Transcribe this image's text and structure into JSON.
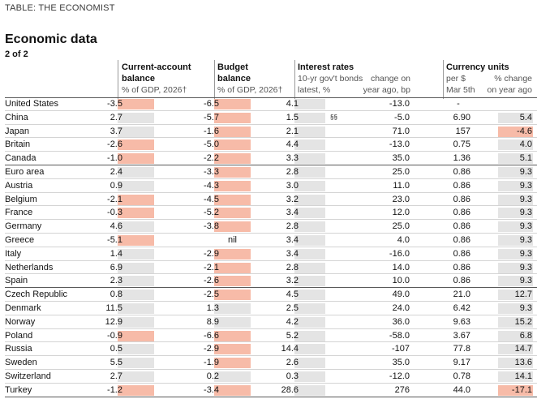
{
  "source": "TABLE: THE ECONOMIST",
  "title": "Economic data",
  "subtitle": "2 of 2",
  "headers": {
    "ca_title": "Current-account",
    "ca_title2": "balance",
    "ca_unit": "% of GDP, 2026†",
    "bb_title": "Budget",
    "bb_title2": "balance",
    "bb_unit": "% of GDP, 2026†",
    "ir_title": "Interest rates",
    "ir_sub1": "10-yr gov't bonds",
    "ir_sub2": "latest, %",
    "ir_chg1": "change on",
    "ir_chg2": "year ago, bp",
    "cu_title": "Currency units",
    "cu_per1": "per $",
    "cu_per2": "Mar 5th",
    "cu_chg1": "% change",
    "cu_chg2": "on year ago"
  },
  "footnote_china": "§§",
  "rows": [
    {
      "country": "United States",
      "ca": "-3.5",
      "bb": "-6.5",
      "ir": "4.1",
      "irc": "-13.0",
      "fx": "-",
      "fxc": "",
      "group_end": false
    },
    {
      "country": "China",
      "ca": "2.7",
      "bb": "-5.7",
      "ir": "1.5",
      "irc": "-5.0",
      "fx": "6.90",
      "fxc": "5.4",
      "group_end": false
    },
    {
      "country": "Japan",
      "ca": "3.7",
      "bb": "-1.6",
      "ir": "2.1",
      "irc": "71.0",
      "fx": "157",
      "fxc": "-4.6",
      "group_end": false
    },
    {
      "country": "Britain",
      "ca": "-2.6",
      "bb": "-5.0",
      "ir": "4.4",
      "irc": "-13.0",
      "fx": "0.75",
      "fxc": "4.0",
      "group_end": false
    },
    {
      "country": "Canada",
      "ca": "-1.0",
      "bb": "-2.2",
      "ir": "3.3",
      "irc": "35.0",
      "fx": "1.36",
      "fxc": "5.1",
      "group_end": true
    },
    {
      "country": "Euro area",
      "ca": "2.4",
      "bb": "-3.3",
      "ir": "2.8",
      "irc": "25.0",
      "fx": "0.86",
      "fxc": "9.3",
      "group_end": false
    },
    {
      "country": "Austria",
      "ca": "0.9",
      "bb": "-4.3",
      "ir": "3.0",
      "irc": "11.0",
      "fx": "0.86",
      "fxc": "9.3",
      "group_end": false
    },
    {
      "country": "Belgium",
      "ca": "-2.1",
      "bb": "-4.5",
      "ir": "3.2",
      "irc": "23.0",
      "fx": "0.86",
      "fxc": "9.3",
      "group_end": false
    },
    {
      "country": "France",
      "ca": "-0.3",
      "bb": "-5.2",
      "ir": "3.4",
      "irc": "12.0",
      "fx": "0.86",
      "fxc": "9.3",
      "group_end": false
    },
    {
      "country": "Germany",
      "ca": "4.6",
      "bb": "-3.8",
      "ir": "2.8",
      "irc": "25.0",
      "fx": "0.86",
      "fxc": "9.3",
      "group_end": false
    },
    {
      "country": "Greece",
      "ca": "-5.1",
      "bb": "nil",
      "ir": "3.4",
      "irc": "4.0",
      "fx": "0.86",
      "fxc": "9.3",
      "group_end": false
    },
    {
      "country": "Italy",
      "ca": "1.4",
      "bb": "-2.9",
      "ir": "3.4",
      "irc": "-16.0",
      "fx": "0.86",
      "fxc": "9.3",
      "group_end": false
    },
    {
      "country": "Netherlands",
      "ca": "6.9",
      "bb": "-2.1",
      "ir": "2.8",
      "irc": "14.0",
      "fx": "0.86",
      "fxc": "9.3",
      "group_end": false
    },
    {
      "country": "Spain",
      "ca": "2.3",
      "bb": "-2.6",
      "ir": "3.2",
      "irc": "10.0",
      "fx": "0.86",
      "fxc": "9.3",
      "group_end": true
    },
    {
      "country": "Czech Republic",
      "ca": "0.8",
      "bb": "-2.5",
      "ir": "4.5",
      "irc": "49.0",
      "fx": "21.0",
      "fxc": "12.7",
      "group_end": false
    },
    {
      "country": "Denmark",
      "ca": "11.5",
      "bb": "1.3",
      "ir": "2.5",
      "irc": "24.0",
      "fx": "6.42",
      "fxc": "9.3",
      "group_end": false
    },
    {
      "country": "Norway",
      "ca": "12.9",
      "bb": "8.9",
      "ir": "4.2",
      "irc": "36.0",
      "fx": "9.63",
      "fxc": "15.2",
      "group_end": false
    },
    {
      "country": "Poland",
      "ca": "-0.9",
      "bb": "-6.6",
      "ir": "5.2",
      "irc": "-58.0",
      "fx": "3.67",
      "fxc": "6.8",
      "group_end": false
    },
    {
      "country": "Russia",
      "ca": "0.5",
      "bb": "-2.9",
      "ir": "14.4",
      "irc": "-107",
      "fx": "77.8",
      "fxc": "14.7",
      "group_end": false
    },
    {
      "country": "Sweden",
      "ca": "5.5",
      "bb": "-1.9",
      "ir": "2.6",
      "irc": "35.0",
      "fx": "9.17",
      "fxc": "13.6",
      "group_end": false
    },
    {
      "country": "Switzerland",
      "ca": "2.7",
      "bb": "0.2",
      "ir": "0.3",
      "irc": "-12.0",
      "fx": "0.78",
      "fxc": "14.1",
      "group_end": false
    },
    {
      "country": "Turkey",
      "ca": "-1.2",
      "bb": "-3.4",
      "ir": "28.6",
      "irc": "276",
      "fx": "44.0",
      "fxc": "-17.1",
      "group_end": true
    }
  ],
  "colors": {
    "negative": "#f7bba8",
    "positive": "#e4e4e4"
  }
}
